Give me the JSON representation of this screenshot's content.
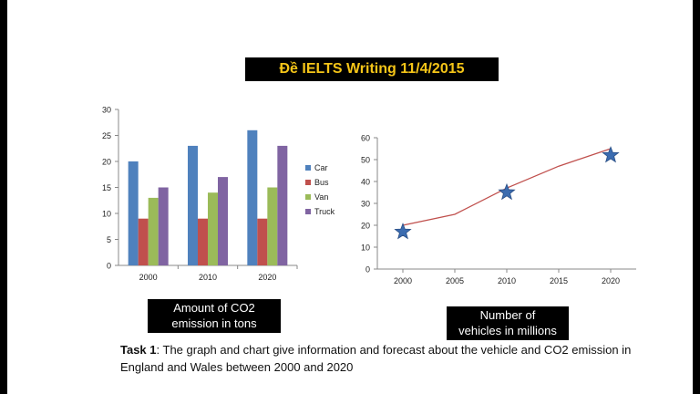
{
  "title": "Đề IELTS Writing 11/4/2015",
  "captions": {
    "bar_line1": "Amount of CO2",
    "bar_line2": "emission in tons",
    "line_line1": "Number of",
    "line_line2": "vehicles in millions"
  },
  "task": {
    "label": "Task 1",
    "text": ": The graph and chart give information and forecast about the vehicle and CO2 emission in England and Wales between 2000 and 2020"
  },
  "chart_data": [
    {
      "type": "bar",
      "title": "Amount of CO2 emission in tons",
      "categories": [
        "2000",
        "2010",
        "2020"
      ],
      "series": [
        {
          "name": "Car",
          "values": [
            20,
            23,
            26
          ],
          "color": "#4f81bd"
        },
        {
          "name": "Bus",
          "values": [
            9,
            9,
            9
          ],
          "color": "#c0504d"
        },
        {
          "name": "Van",
          "values": [
            13,
            14,
            15
          ],
          "color": "#9bbb59"
        },
        {
          "name": "Truck",
          "values": [
            15,
            17,
            23
          ],
          "color": "#8064a2"
        }
      ],
      "ylim": [
        0,
        30
      ],
      "yticks": [
        0,
        5,
        10,
        15,
        20,
        25,
        30
      ],
      "legend": "right"
    },
    {
      "type": "line",
      "title": "Number of vehicles in millions",
      "x": [
        2000,
        2005,
        2010,
        2015,
        2020
      ],
      "xticks": [
        "2000",
        "2005",
        "2010",
        "2015",
        "2020"
      ],
      "series": [
        {
          "name": "Vehicles",
          "values": [
            20,
            25,
            37,
            47,
            55
          ],
          "color": "#c0504d"
        }
      ],
      "star_markers": [
        {
          "x": 2000,
          "y": 17
        },
        {
          "x": 2010,
          "y": 35
        },
        {
          "x": 2020,
          "y": 52
        }
      ],
      "star_color": "#3b6cb0",
      "ylim": [
        0,
        60
      ],
      "yticks": [
        0,
        10,
        20,
        30,
        40,
        50,
        60
      ]
    }
  ]
}
